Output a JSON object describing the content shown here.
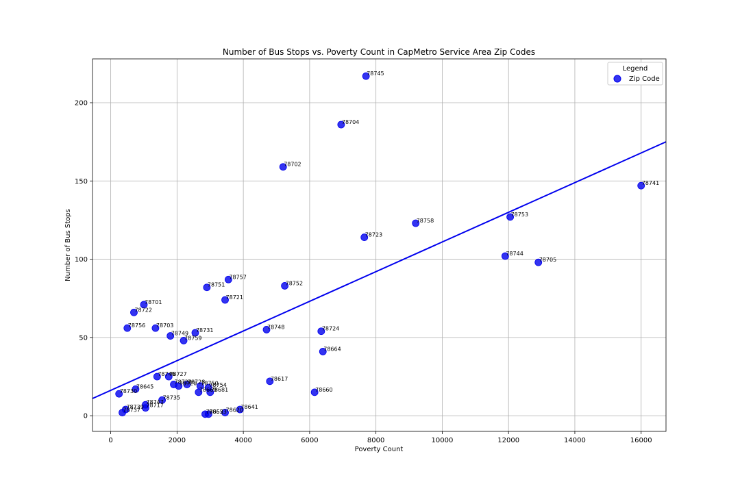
{
  "chart_data": {
    "type": "scatter",
    "title": "Number of Bus Stops vs. Poverty Count in CapMetro Service Area Zip Codes",
    "xlabel": "Poverty Count",
    "ylabel": "Number of Bus Stops",
    "xlim": [
      -550,
      16750
    ],
    "ylim": [
      -10,
      228
    ],
    "xticks": [
      0,
      2000,
      4000,
      6000,
      8000,
      10000,
      12000,
      14000,
      16000
    ],
    "yticks": [
      0,
      50,
      100,
      150,
      200
    ],
    "grid": true,
    "legend": {
      "title": "Legend",
      "position": "top-right",
      "entries": [
        "Zip Code"
      ]
    },
    "point_color": "#0000ee",
    "line_color": "#0000ee",
    "regression_line": {
      "x": [
        -550,
        16750
      ],
      "y": [
        11,
        175
      ]
    },
    "points": [
      {
        "label": "78745",
        "x": 7700,
        "y": 217
      },
      {
        "label": "78704",
        "x": 6950,
        "y": 186
      },
      {
        "label": "78702",
        "x": 5200,
        "y": 159
      },
      {
        "label": "78741",
        "x": 16000,
        "y": 147
      },
      {
        "label": "78753",
        "x": 12050,
        "y": 127
      },
      {
        "label": "78758",
        "x": 9200,
        "y": 123
      },
      {
        "label": "78723",
        "x": 7650,
        "y": 114
      },
      {
        "label": "78744",
        "x": 11900,
        "y": 102
      },
      {
        "label": "78705",
        "x": 12900,
        "y": 98
      },
      {
        "label": "78757",
        "x": 3550,
        "y": 87
      },
      {
        "label": "78752",
        "x": 5250,
        "y": 83
      },
      {
        "label": "78751",
        "x": 2900,
        "y": 82
      },
      {
        "label": "78721",
        "x": 3450,
        "y": 74
      },
      {
        "label": "78701",
        "x": 1000,
        "y": 71
      },
      {
        "label": "78722",
        "x": 700,
        "y": 66
      },
      {
        "label": "78756",
        "x": 500,
        "y": 56
      },
      {
        "label": "78703",
        "x": 1350,
        "y": 56
      },
      {
        "label": "78748",
        "x": 4700,
        "y": 55
      },
      {
        "label": "78724",
        "x": 6350,
        "y": 54
      },
      {
        "label": "78731",
        "x": 2550,
        "y": 53
      },
      {
        "label": "78749",
        "x": 1800,
        "y": 51
      },
      {
        "label": "78759",
        "x": 2200,
        "y": 48
      },
      {
        "label": "78664",
        "x": 6400,
        "y": 41
      },
      {
        "label": "78746",
        "x": 1400,
        "y": 25
      },
      {
        "label": "78727",
        "x": 1750,
        "y": 25
      },
      {
        "label": "78617",
        "x": 4800,
        "y": 22
      },
      {
        "label": "78729",
        "x": 1900,
        "y": 20
      },
      {
        "label": "78726",
        "x": 2050,
        "y": 19
      },
      {
        "label": "78728",
        "x": 2300,
        "y": 20
      },
      {
        "label": "78750",
        "x": 2700,
        "y": 19
      },
      {
        "label": "78754",
        "x": 2950,
        "y": 18
      },
      {
        "label": "78645",
        "x": 750,
        "y": 17
      },
      {
        "label": "78669",
        "x": 2650,
        "y": 15
      },
      {
        "label": "78681",
        "x": 3000,
        "y": 15
      },
      {
        "label": "78660",
        "x": 6150,
        "y": 15
      },
      {
        "label": "78730",
        "x": 250,
        "y": 14
      },
      {
        "label": "78735",
        "x": 1550,
        "y": 10
      },
      {
        "label": "78747",
        "x": 1050,
        "y": 7
      },
      {
        "label": "78717",
        "x": 1050,
        "y": 5
      },
      {
        "label": "78739",
        "x": 450,
        "y": 4
      },
      {
        "label": "78641",
        "x": 3900,
        "y": 4
      },
      {
        "label": "78737",
        "x": 350,
        "y": 2
      },
      {
        "label": "78652",
        "x": 2850,
        "y": 1
      },
      {
        "label": "78653",
        "x": 2950,
        "y": 1
      },
      {
        "label": "78620",
        "x": 3450,
        "y": 2
      }
    ]
  }
}
